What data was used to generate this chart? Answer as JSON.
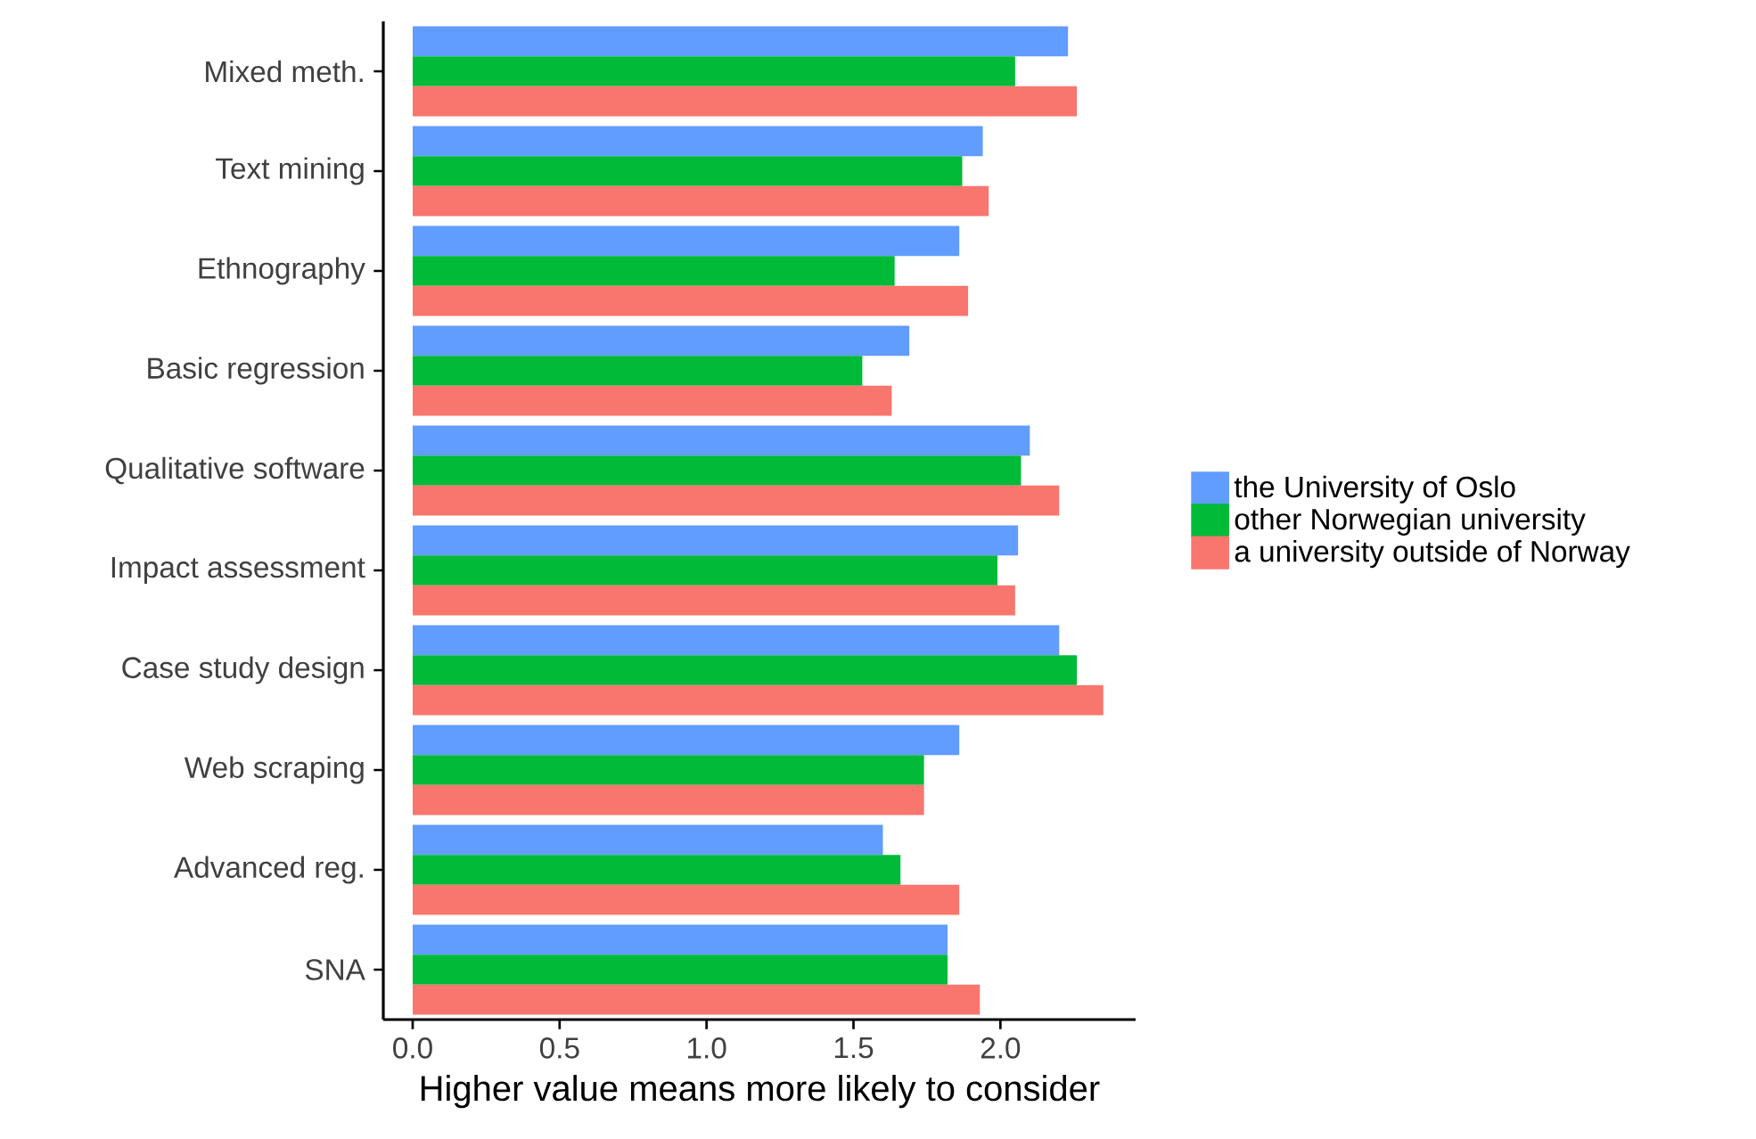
{
  "chart_data": {
    "type": "bar",
    "orientation": "horizontal",
    "xlabel": "Higher value means more likely to consider",
    "categories": [
      "Mixed meth.",
      "Text mining",
      "Ethnography",
      "Basic regression",
      "Qualitative software",
      "Impact assessment",
      "Case study design",
      "Web scraping",
      "Advanced reg.",
      "SNA"
    ],
    "series": [
      {
        "name": "the University of Oslo",
        "color": "#619cff",
        "values": [
          2.23,
          1.94,
          1.86,
          1.69,
          2.1,
          2.06,
          2.2,
          1.86,
          1.6,
          1.82
        ]
      },
      {
        "name": "other Norwegian university",
        "color": "#00ba38",
        "values": [
          2.05,
          1.87,
          1.64,
          1.53,
          2.07,
          1.99,
          2.26,
          1.74,
          1.66,
          1.82
        ]
      },
      {
        "name": "a university outside of Norway",
        "color": "#f8766d",
        "values": [
          2.26,
          1.96,
          1.89,
          1.63,
          2.2,
          2.05,
          2.35,
          1.74,
          1.86,
          1.93
        ]
      }
    ],
    "xlim": [
      -0.1,
      2.46
    ],
    "xticks": [
      {
        "value": 0,
        "label": "0.0"
      },
      0.5,
      {
        "value": 1,
        "label": "1.0"
      },
      1.5,
      {
        "value": 2,
        "label": "2.0"
      }
    ],
    "grid": false,
    "legend": "right"
  }
}
